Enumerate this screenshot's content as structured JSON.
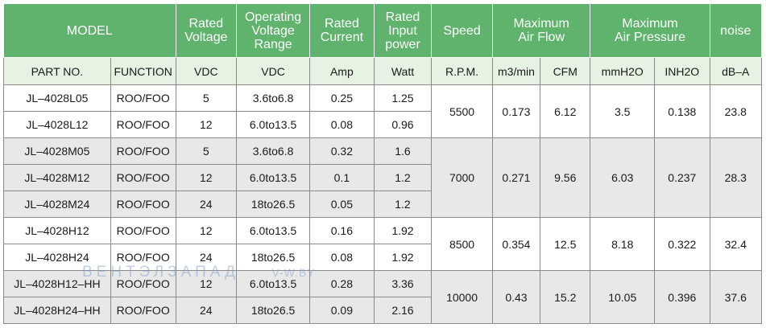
{
  "header": {
    "model": "MODEL",
    "rated_voltage": "Rated\nVoltage",
    "operating_voltage_range": "Operating\nVoltage\nRange",
    "rated_current": "Rated\nCurrent",
    "rated_input_power": "Rated\nInput\npower",
    "speed": "Speed",
    "max_air_flow": "Maximum\nAir Flow",
    "max_air_pressure": "Maximum\nAir Pressure",
    "noise": "noise"
  },
  "units": {
    "part_no": "PART NO.",
    "function": "FUNCTION",
    "rated_voltage": "VDC",
    "operating_voltage": "VDC",
    "current": "Amp",
    "power": "Watt",
    "speed": "R.P.M.",
    "flow_m3": "m3/min",
    "flow_cfm": "CFM",
    "pressure_mm": "mmH2O",
    "pressure_in": "INH2O",
    "noise": "dB–A"
  },
  "rows": [
    {
      "part": "JL–4028L05",
      "function": "ROO/FOO",
      "voltage": "5",
      "range": "3.6to6.8",
      "current": "0.25",
      "power": "1.25"
    },
    {
      "part": "JL–4028L12",
      "function": "ROO/FOO",
      "voltage": "12",
      "range": "6.0to13.5",
      "current": "0.08",
      "power": "0.96"
    },
    {
      "part": "JL–4028M05",
      "function": "ROO/FOO",
      "voltage": "5",
      "range": "3.6to6.8",
      "current": "0.32",
      "power": "1.6"
    },
    {
      "part": "JL–4028M12",
      "function": "ROO/FOO",
      "voltage": "12",
      "range": "6.0to13.5",
      "current": "0.1",
      "power": "1.2"
    },
    {
      "part": "JL–4028M24",
      "function": "ROO/FOO",
      "voltage": "24",
      "range": "18to26.5",
      "current": "0.05",
      "power": "1.2"
    },
    {
      "part": "JL–4028H12",
      "function": "ROO/FOO",
      "voltage": "12",
      "range": "6.0to13.5",
      "current": "0.16",
      "power": "1.92"
    },
    {
      "part": "JL–4028H24",
      "function": "ROO/FOO",
      "voltage": "24",
      "range": "18to26.5",
      "current": "0.08",
      "power": "1.92"
    },
    {
      "part": "JL–4028H12–HH",
      "function": "ROO/FOO",
      "voltage": "12",
      "range": "6.0to13.5",
      "current": "0.28",
      "power": "3.36"
    },
    {
      "part": "JL–4028H24–HH",
      "function": "ROO/FOO",
      "voltage": "24",
      "range": "18to26.5",
      "current": "0.09",
      "power": "2.16"
    }
  ],
  "groups": [
    {
      "speed": "5500",
      "flow_m3": "0.173",
      "flow_cfm": "6.12",
      "pressure_mm": "3.5",
      "pressure_in": "0.138",
      "noise": "23.8"
    },
    {
      "speed": "7000",
      "flow_m3": "0.271",
      "flow_cfm": "9.56",
      "pressure_mm": "6.03",
      "pressure_in": "0.237",
      "noise": "28.3"
    },
    {
      "speed": "8500",
      "flow_m3": "0.354",
      "flow_cfm": "12.5",
      "pressure_mm": "8.18",
      "pressure_in": "0.322",
      "noise": "32.4"
    },
    {
      "speed": "10000",
      "flow_m3": "0.43",
      "flow_cfm": "15.2",
      "pressure_mm": "10.05",
      "pressure_in": "0.396",
      "noise": "37.6"
    }
  ],
  "watermark": {
    "brand": "ВЕНТЭЛЗАПАД",
    "site": "V-W.BY"
  },
  "colors": {
    "header_green": "#5fb36c",
    "units_row": "#e6f2e2",
    "gray_row": "#e8e8e8"
  }
}
